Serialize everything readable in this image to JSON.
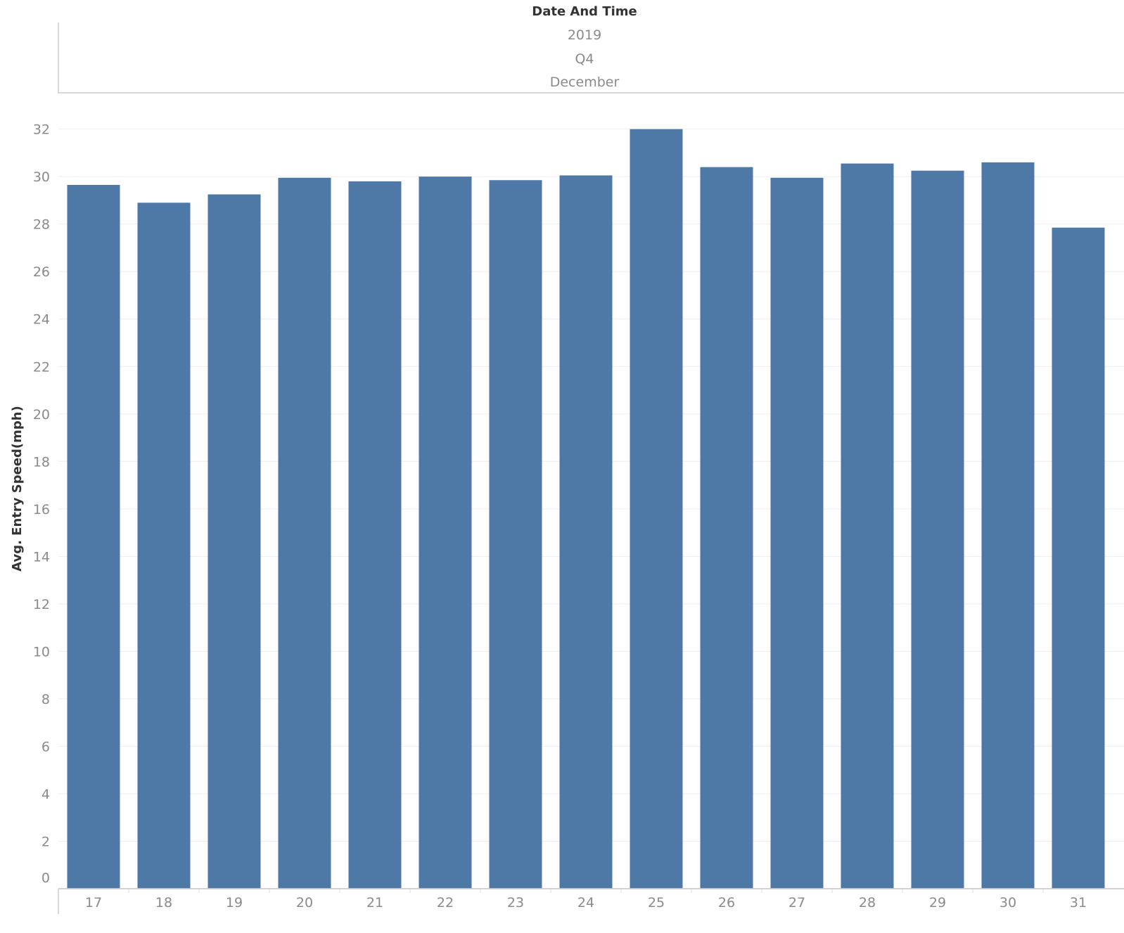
{
  "header": {
    "field_title": "Date And Time",
    "levels": [
      "2019",
      "Q4",
      "December"
    ]
  },
  "chart_data": {
    "type": "bar",
    "title": "",
    "xlabel": "",
    "ylabel": "Avg. Entry Speed(mph)",
    "categories": [
      "17",
      "18",
      "19",
      "20",
      "21",
      "22",
      "23",
      "24",
      "25",
      "26",
      "27",
      "28",
      "29",
      "30",
      "31"
    ],
    "values": [
      29.65,
      28.9,
      29.25,
      29.95,
      29.8,
      30.0,
      29.85,
      30.05,
      32.0,
      30.4,
      29.95,
      30.55,
      30.25,
      30.6,
      27.85
    ],
    "ylim": [
      0,
      33.5
    ],
    "yticks": [
      0,
      2,
      4,
      6,
      8,
      10,
      12,
      14,
      16,
      18,
      20,
      22,
      24,
      26,
      28,
      30,
      32
    ],
    "grid": true,
    "bar_color": "#4e79a7"
  }
}
